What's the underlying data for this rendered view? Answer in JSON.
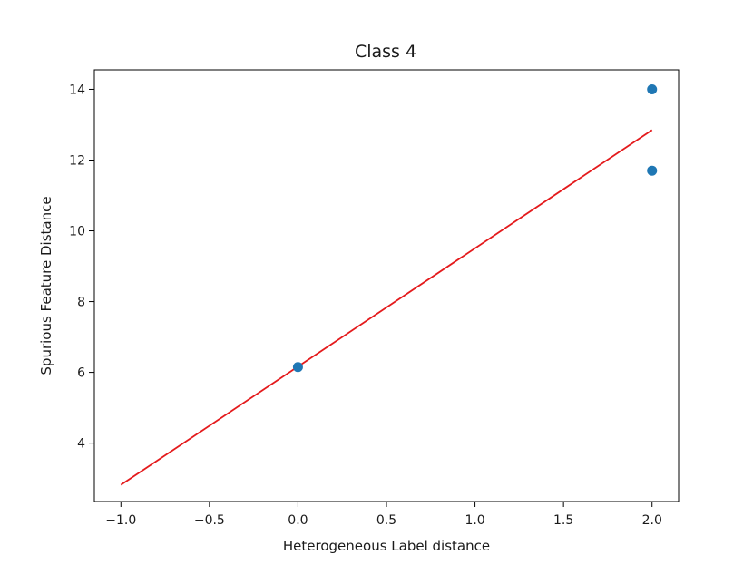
{
  "chart_data": {
    "type": "scatter",
    "title": "Class 4",
    "xlabel": "Heterogeneous Label distance",
    "ylabel": "Spurious Feature Distance",
    "xlim": [
      -1.15,
      2.15
    ],
    "ylim": [
      2.35,
      14.55
    ],
    "xticks": [
      -1.0,
      -0.5,
      0.0,
      0.5,
      1.0,
      1.5,
      2.0
    ],
    "xtick_labels": [
      "−1.0",
      "−0.5",
      "0.0",
      "0.5",
      "1.0",
      "1.5",
      "2.0"
    ],
    "yticks": [
      4,
      6,
      8,
      10,
      12,
      14
    ],
    "ytick_labels": [
      "4",
      "6",
      "8",
      "10",
      "12",
      "14"
    ],
    "grid": false,
    "series": [
      {
        "type": "scatter",
        "color": "#1f77b4",
        "points": [
          {
            "x": 0.0,
            "y": 6.15
          },
          {
            "x": 2.0,
            "y": 14.0
          },
          {
            "x": 2.0,
            "y": 11.7
          }
        ]
      },
      {
        "type": "line",
        "color": "#e41a1c",
        "points": [
          {
            "x": -1.0,
            "y": 2.82
          },
          {
            "x": 2.0,
            "y": 12.85
          }
        ]
      }
    ]
  }
}
